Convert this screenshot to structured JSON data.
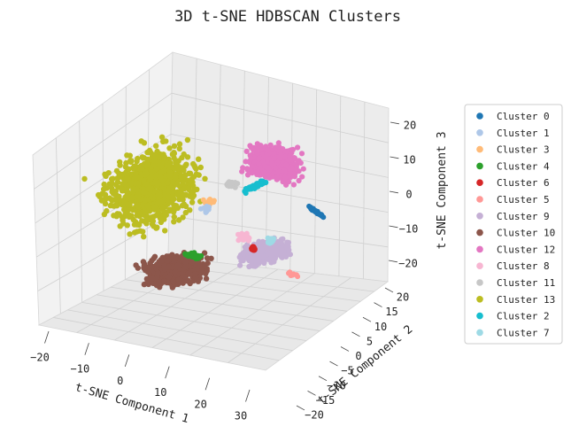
{
  "chart_data": {
    "type": "scatter",
    "projection": "3d",
    "title": "3D t-SNE HDBSCAN Clusters",
    "xlabel": "t-SNE Component 1",
    "ylabel": "t-SNE Component 2",
    "zlabel": "t-SNE Component 3",
    "xticks": [
      "−20",
      "−10",
      "0",
      "10",
      "20",
      "30"
    ],
    "yticks": [
      "−20",
      "−15",
      "−10",
      "−5",
      "0",
      "5",
      "10",
      "15",
      "20"
    ],
    "zticks": [
      "−20",
      "−10",
      "0",
      "10",
      "20"
    ],
    "grid": true,
    "legend_position": "right",
    "series": [
      {
        "name": "Cluster 0",
        "color": "#1f77b4"
      },
      {
        "name": "Cluster 1",
        "color": "#aec7e8"
      },
      {
        "name": "Cluster 3",
        "color": "#ffbb78"
      },
      {
        "name": "Cluster 4",
        "color": "#2ca02c"
      },
      {
        "name": "Cluster 6",
        "color": "#d62728"
      },
      {
        "name": "Cluster 5",
        "color": "#ff9896"
      },
      {
        "name": "Cluster 9",
        "color": "#c5b0d5"
      },
      {
        "name": "Cluster 10",
        "color": "#8c564b"
      },
      {
        "name": "Cluster 12",
        "color": "#e377c2"
      },
      {
        "name": "Cluster 8",
        "color": "#f7b6d2"
      },
      {
        "name": "Cluster 11",
        "color": "#c7c7c7"
      },
      {
        "name": "Cluster 13",
        "color": "#bcbd22"
      },
      {
        "name": "Cluster 2",
        "color": "#17becf"
      },
      {
        "name": "Cluster 7",
        "color": "#9edae5"
      }
    ]
  }
}
